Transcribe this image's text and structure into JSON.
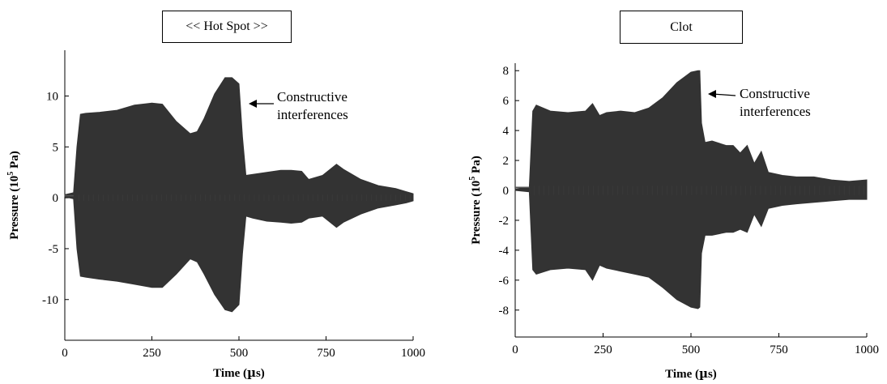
{
  "chart_data": [
    {
      "type": "line",
      "title": "<< Hot Spot >>",
      "xlabel": "Time (µs)",
      "ylabel": "Pressure (10^5 Pa)",
      "ylabel_parts": {
        "pre": "Pressure (10",
        "sup": "5",
        "post": " Pa)"
      },
      "xlabel_parts": {
        "pre": "Time (",
        "mu": "µ",
        "post": "s)"
      },
      "xlim": [
        0,
        1000
      ],
      "ylim": [
        -14,
        14.5
      ],
      "xticks": [
        0,
        250,
        500,
        750,
        1000
      ],
      "xtick_labels": [
        "0",
        "250",
        "500",
        "750",
        "1000"
      ],
      "yticks": [
        10,
        5,
        0,
        -5,
        -10
      ],
      "ytick_labels": [
        "10",
        "5",
        "0",
        "-5",
        "-10"
      ],
      "grid": false,
      "annotation": {
        "text_lines": [
          "Constructive",
          "interferences"
        ],
        "x": 490,
        "y": 11.8
      },
      "fill_color": "#333333",
      "series": [
        {
          "x": [
            0,
            25,
            35,
            45,
            60,
            100,
            150,
            200,
            250,
            280,
            320,
            360,
            380,
            400,
            430,
            460,
            480,
            500,
            510,
            520,
            540,
            580,
            620,
            650,
            680,
            700,
            740,
            780,
            800,
            850,
            900,
            950,
            980,
            1000
          ],
          "upper": [
            0.3,
            0.5,
            5.0,
            8.2,
            8.3,
            8.4,
            8.6,
            9.1,
            9.3,
            9.2,
            7.5,
            6.3,
            6.5,
            7.8,
            10.2,
            11.8,
            11.8,
            11.2,
            6.0,
            2.2,
            2.3,
            2.5,
            2.7,
            2.7,
            2.6,
            1.8,
            2.2,
            3.3,
            2.8,
            1.8,
            1.2,
            0.9,
            0.6,
            0.4
          ],
          "lower": [
            0.1,
            -0.1,
            -5.0,
            -7.7,
            -7.8,
            -8.0,
            -8.2,
            -8.5,
            -8.8,
            -8.8,
            -7.5,
            -6.0,
            -6.3,
            -7.5,
            -9.5,
            -11.0,
            -11.2,
            -10.5,
            -5.5,
            -1.8,
            -2.0,
            -2.3,
            -2.4,
            -2.5,
            -2.4,
            -2.0,
            -1.8,
            -2.9,
            -2.4,
            -1.6,
            -1.0,
            -0.7,
            -0.5,
            -0.3
          ]
        }
      ]
    },
    {
      "type": "line",
      "title": "Clot",
      "xlabel": "Time (µs)",
      "ylabel": "Pressure (10^5 Pa)",
      "ylabel_parts": {
        "pre": "Pressure (10",
        "sup": "5",
        "post": " Pa)"
      },
      "xlabel_parts": {
        "pre": "Time (",
        "mu": "µ",
        "post": "s)"
      },
      "xlim": [
        0,
        1000
      ],
      "ylim": [
        -9.8,
        8.5
      ],
      "xticks": [
        0,
        250,
        500,
        750,
        1000
      ],
      "xtick_labels": [
        "0",
        "250",
        "500",
        "750",
        "1000"
      ],
      "yticks": [
        8,
        6,
        4,
        2,
        0,
        -2,
        -4,
        -6,
        -8
      ],
      "ytick_labels": [
        "8",
        "6",
        "4",
        "2",
        "0",
        "-2",
        "-4",
        "-6",
        "-8"
      ],
      "grid": false,
      "annotation": {
        "text_lines": [
          "Constructive",
          "interferences"
        ],
        "x": 520,
        "y": 7.9
      },
      "fill_color": "#333333",
      "series": [
        {
          "x": [
            0,
            40,
            50,
            60,
            100,
            150,
            200,
            220,
            240,
            260,
            300,
            340,
            380,
            420,
            460,
            500,
            520,
            525,
            530,
            540,
            560,
            600,
            620,
            640,
            660,
            680,
            700,
            720,
            760,
            800,
            850,
            900,
            950,
            1000
          ],
          "upper": [
            0.1,
            0.2,
            5.3,
            5.7,
            5.3,
            5.2,
            5.3,
            5.8,
            5.0,
            5.2,
            5.3,
            5.2,
            5.5,
            6.2,
            7.2,
            7.9,
            8.0,
            8.0,
            4.5,
            3.2,
            3.3,
            3.0,
            3.0,
            2.5,
            3.0,
            1.8,
            2.6,
            1.2,
            1.0,
            0.9,
            0.9,
            0.7,
            0.6,
            0.7
          ],
          "lower": [
            0.0,
            -0.1,
            -5.3,
            -5.6,
            -5.3,
            -5.2,
            -5.3,
            -6.0,
            -5.0,
            -5.2,
            -5.4,
            -5.6,
            -5.8,
            -6.5,
            -7.3,
            -7.8,
            -7.9,
            -7.8,
            -4.2,
            -3.0,
            -3.0,
            -2.8,
            -2.8,
            -2.6,
            -2.8,
            -1.6,
            -2.4,
            -1.2,
            -1.0,
            -0.9,
            -0.8,
            -0.7,
            -0.6,
            -0.6
          ]
        }
      ]
    }
  ]
}
